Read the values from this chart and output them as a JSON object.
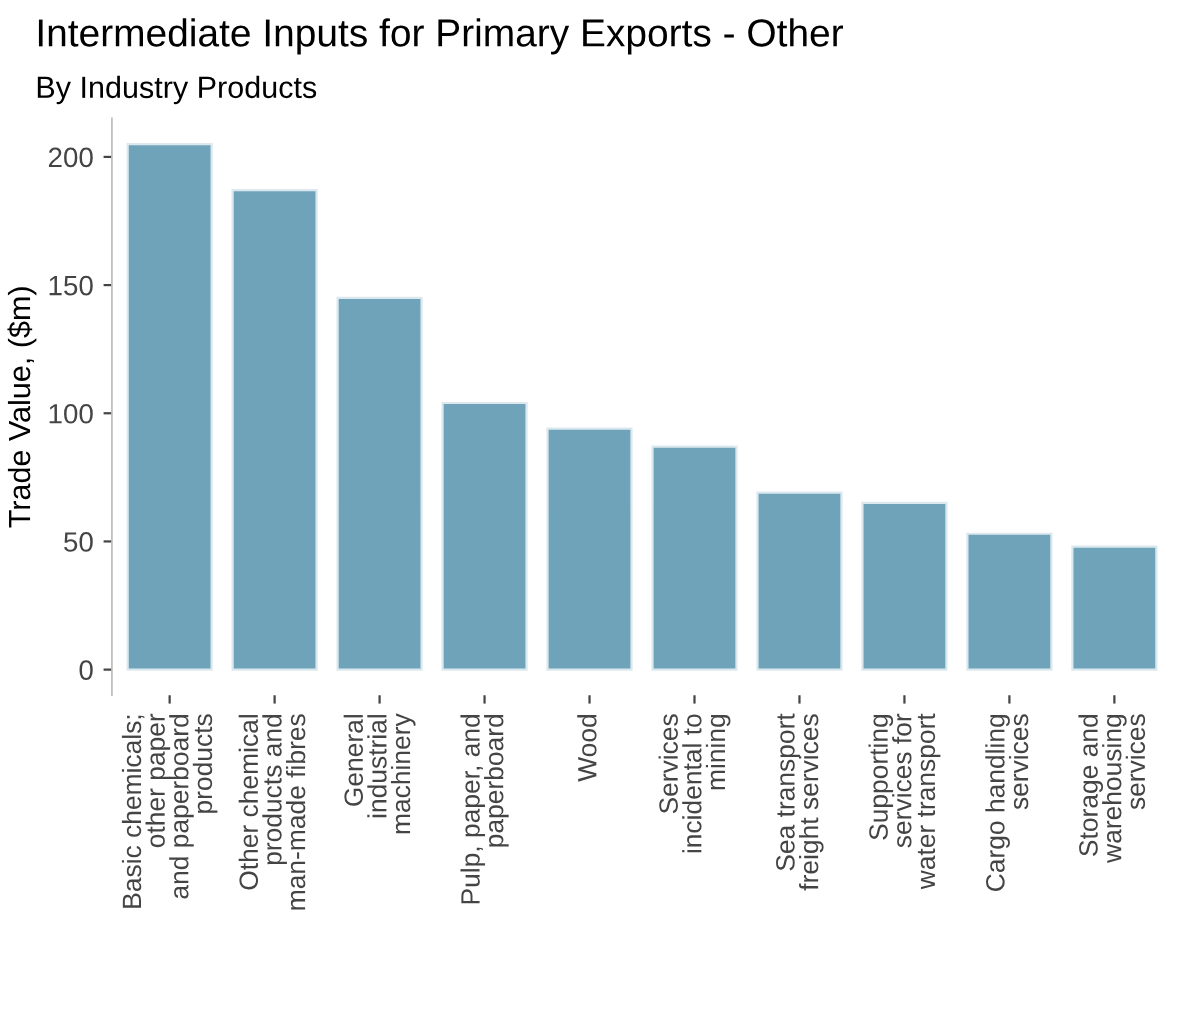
{
  "chart_data": {
    "type": "bar",
    "title": "Intermediate Inputs for Primary Exports - Other",
    "subtitle": "By Industry Products",
    "ylabel": "Trade Value, ($m)",
    "categories": [
      "Basic chemicals;\nother paper\nand paperboard\nproducts",
      "Other chemical\nproducts and\nman-made fibres",
      "General\nindustrial\nmachinery",
      "Pulp, paper, and\npaperboard",
      "Wood",
      "Services\nincidental to\nmining",
      "Sea transport\nfreight services",
      "Supporting\nservices for\nwater transport",
      "Cargo handling\nservices",
      "Storage and\nwarehousing\nservices"
    ],
    "values": [
      205,
      187,
      145,
      104,
      94,
      87,
      69,
      65,
      53,
      48
    ],
    "color": "#6fa3b9",
    "ylim": [
      -10,
      215
    ],
    "yticks": [
      0,
      50,
      100,
      150,
      200
    ],
    "grid": false
  }
}
